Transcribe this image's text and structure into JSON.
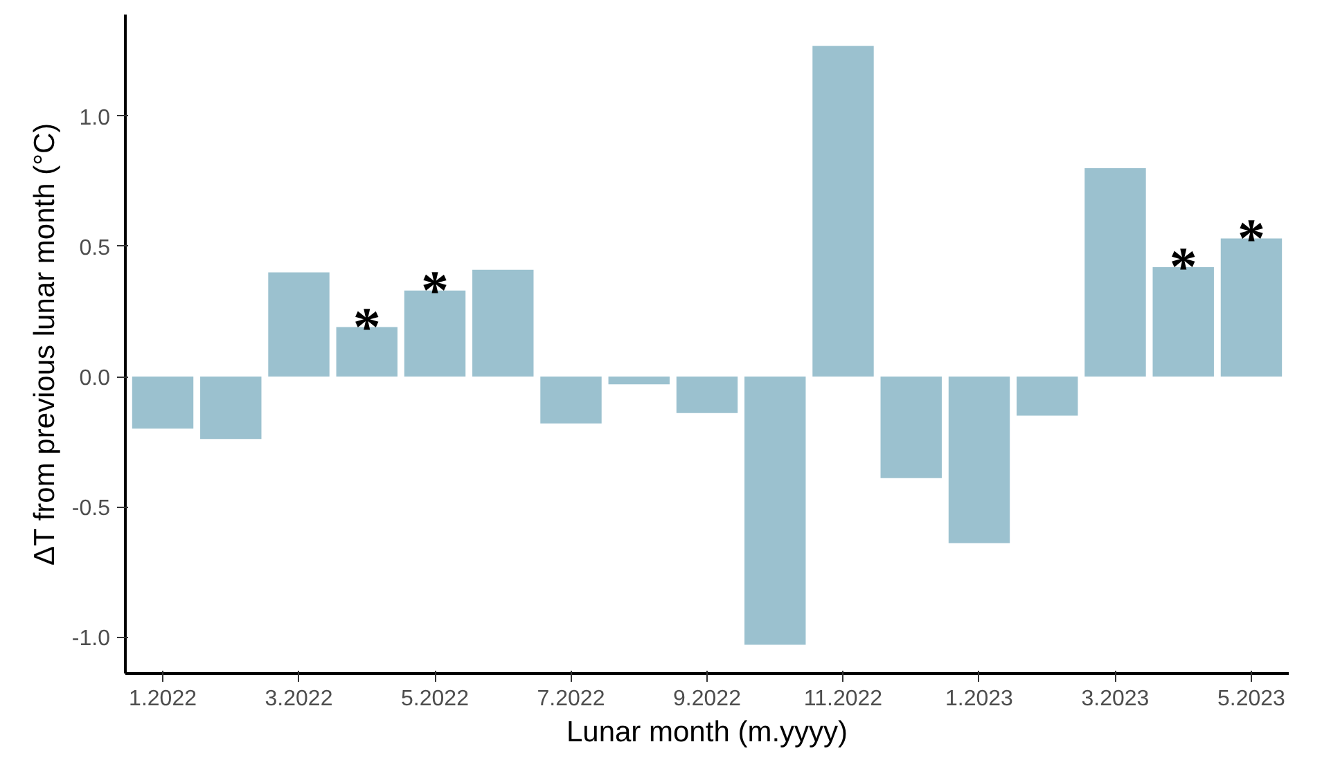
{
  "chart_data": {
    "type": "bar",
    "xlabel": "Lunar month (m.yyyy)",
    "ylabel": "ΔT from previous lunar month (°C)",
    "categories": [
      "1.2022",
      null,
      "3.2022",
      null,
      "5.2022",
      null,
      "7.2022",
      null,
      "9.2022",
      null,
      "11.2022",
      null,
      "1.2023",
      null,
      "3.2023",
      null,
      "5.2023"
    ],
    "values": [
      -0.2,
      -0.24,
      0.4,
      0.19,
      0.33,
      0.41,
      -0.18,
      -0.03,
      -0.14,
      -1.03,
      1.27,
      -0.39,
      -0.64,
      -0.15,
      0.8,
      0.42,
      0.53
    ],
    "value_labels": [
      null,
      null,
      null,
      "*",
      "*",
      null,
      null,
      null,
      null,
      null,
      null,
      null,
      null,
      null,
      null,
      "*",
      "*"
    ],
    "color": "#9bc1cf",
    "ylim": [
      -1.14,
      1.39
    ],
    "yticks": [
      {
        "value": -1.0,
        "label": "-1.0"
      },
      {
        "value": -0.5,
        "label": "-0.5"
      },
      {
        "value": 0.0,
        "label": "0.0"
      },
      {
        "value": 0.5,
        "label": "0.5"
      },
      {
        "value": 1.0,
        "label": "1.0"
      }
    ],
    "grid": false
  }
}
